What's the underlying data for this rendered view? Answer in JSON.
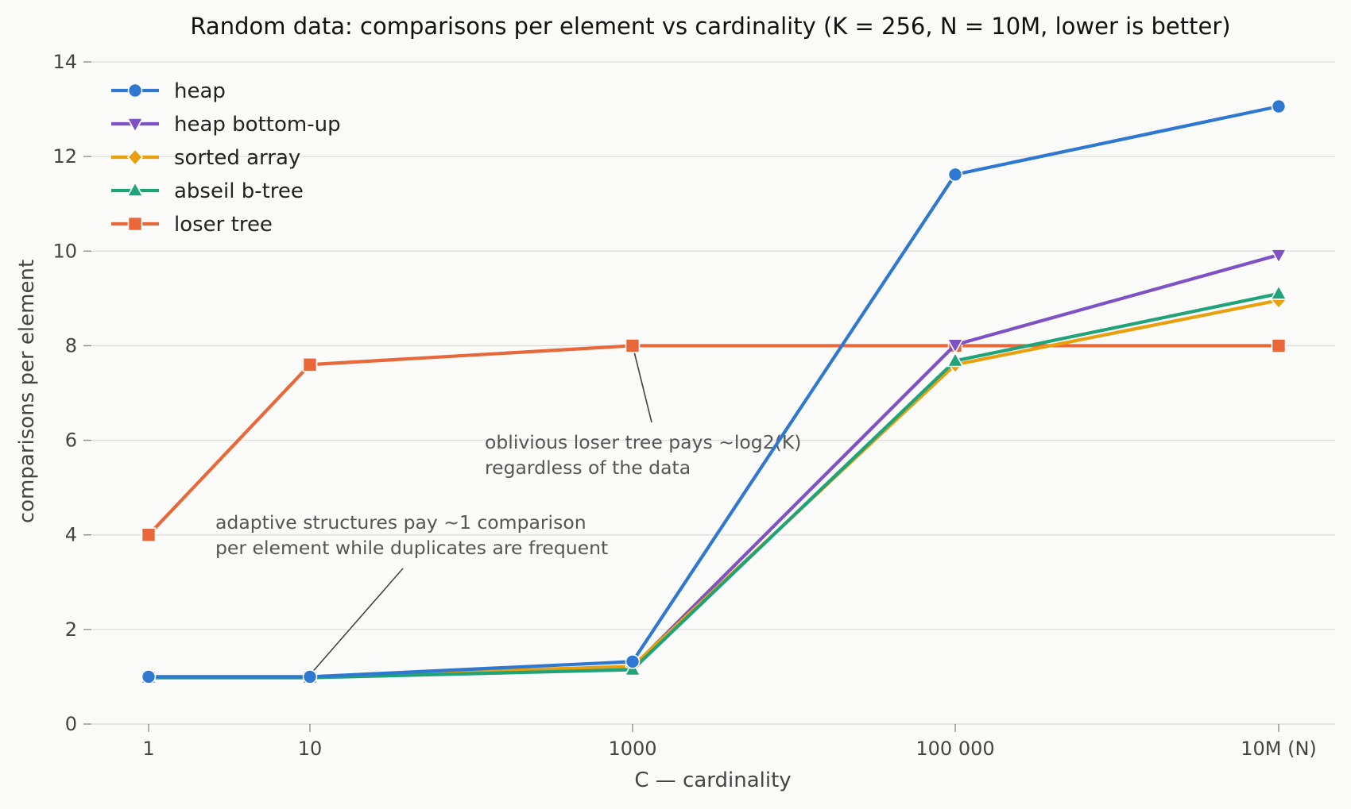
{
  "chart_data": {
    "type": "line",
    "title": "Random data: comparisons per element vs cardinality (K = 256, N = 10M, lower is better)",
    "xlabel": "C — cardinality",
    "ylabel": "comparisons per element",
    "categories": [
      "1",
      "10",
      "1000",
      "100 000",
      "10M (N)"
    ],
    "ylim": [
      0,
      14
    ],
    "yticks": [
      0,
      2,
      4,
      6,
      8,
      10,
      12,
      14
    ],
    "grid": "horizontal",
    "legend_position": "top-left",
    "series": [
      {
        "name": "heap",
        "color": "#2f78d1",
        "marker": "circle",
        "values": [
          1.0,
          1.0,
          1.32,
          11.62,
          13.06
        ]
      },
      {
        "name": "heap bottom-up",
        "color": "#7c52c4",
        "marker": "triangle-down",
        "values": [
          1.0,
          1.0,
          1.2,
          8.02,
          9.92
        ]
      },
      {
        "name": "sorted array",
        "color": "#e8a00e",
        "marker": "diamond",
        "values": [
          1.0,
          1.0,
          1.22,
          7.6,
          8.96
        ]
      },
      {
        "name": "abseil b-tree",
        "color": "#1fa37a",
        "marker": "triangle-up",
        "values": [
          0.98,
          0.98,
          1.15,
          7.68,
          9.1
        ]
      },
      {
        "name": "loser tree",
        "color": "#e8683a",
        "marker": "square",
        "values": [
          4.0,
          7.6,
          8.0,
          8.0,
          8.0
        ]
      }
    ],
    "annotations": [
      {
        "lines": [
          "oblivious loser tree pays ~log2(K)",
          "regardless of the data"
        ],
        "target": {
          "x": "1000",
          "y": 8.0
        }
      },
      {
        "lines": [
          "adaptive structures pay ~1 comparison",
          "per element while duplicates are frequent"
        ],
        "target": {
          "x": "10",
          "y": 1.0
        }
      }
    ]
  }
}
